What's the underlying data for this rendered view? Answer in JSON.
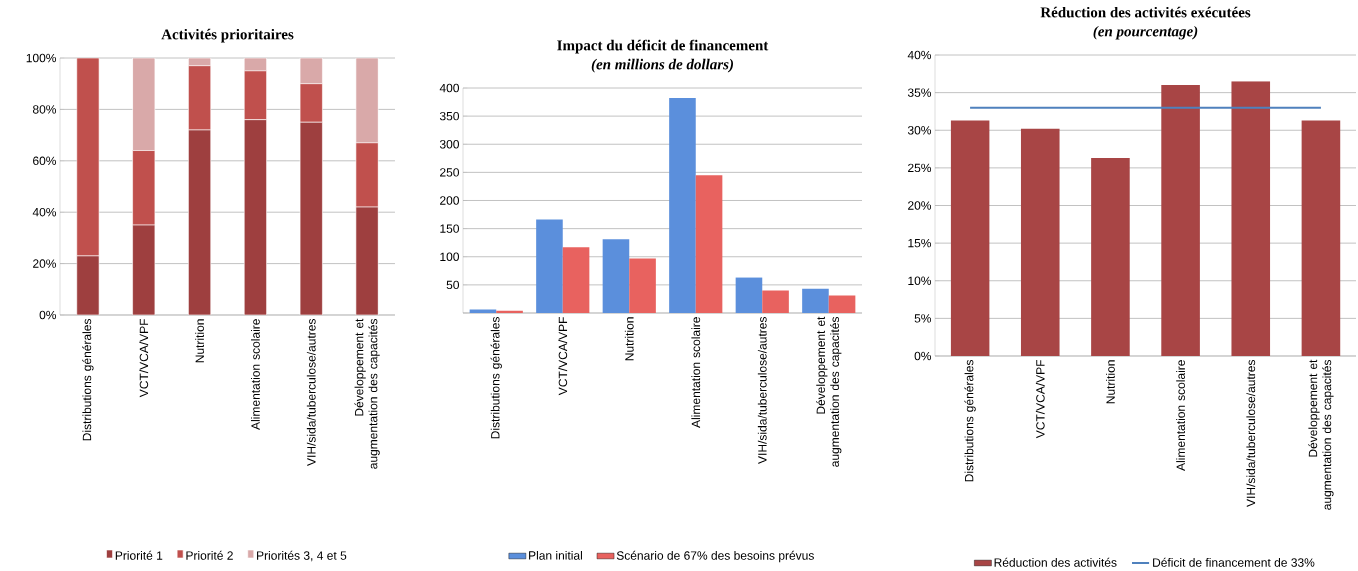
{
  "chart_data": [
    {
      "type": "bar",
      "title": "Activités prioritaires",
      "stacked": true,
      "grid": "y",
      "legend": "bottom",
      "categories": [
        "Distributions générales",
        "VCT/VCA/VPF",
        "Nutrition",
        "Alimentation scolaire",
        "VIH/sida/tuberculose/autres",
        "Développement et augmentation des capacités"
      ],
      "series": [
        {
          "name": "Priorité 1",
          "color": "#9e3f3f",
          "values": [
            23,
            35,
            72,
            76,
            75,
            42
          ]
        },
        {
          "name": "Priorité 2",
          "color": "#c0504d",
          "values": [
            77,
            29,
            25,
            19,
            15,
            25
          ]
        },
        {
          "name": "Priorités 3, 4 et 5",
          "color": "#d9a9a9",
          "values": [
            0,
            36,
            3,
            5,
            10,
            33
          ]
        }
      ],
      "ylim": [
        0,
        100
      ],
      "yticks": [
        {
          "value": 0,
          "label": "0%"
        },
        {
          "value": 20,
          "label": "20%"
        },
        {
          "value": 40,
          "label": "40%"
        },
        {
          "value": 60,
          "label": "60%"
        },
        {
          "value": 80,
          "label": "80%"
        },
        {
          "value": 100,
          "label": "100%"
        }
      ]
    },
    {
      "type": "bar",
      "title": "Impact du déficit de financement",
      "subtitle": "(en millions de dollars)",
      "grid": "y",
      "legend": "bottom",
      "categories": [
        "Distributions générales",
        "VCT/VCA/VPF",
        "Nutrition",
        "Alimentation scolaire",
        "VIH/sida/tuberculose/autres",
        "Développement et augmentation des capacités"
      ],
      "series": [
        {
          "name": "Plan initial",
          "color": "#5b8fdc",
          "values": [
            6,
            166,
            131,
            382,
            63,
            43
          ]
        },
        {
          "name": "Scénario de 67% des besoins prévus",
          "color": "#e8625f",
          "values": [
            4,
            117,
            97,
            245,
            40,
            31
          ]
        }
      ],
      "ylim": [
        0,
        400
      ],
      "yticks": [
        {
          "value": 0,
          "label": null
        },
        50,
        100,
        150,
        200,
        250,
        300,
        350,
        400
      ]
    },
    {
      "type": "bar",
      "title": "Réduction des activités exécutées",
      "subtitle": "(en pourcentage)",
      "grid": "y",
      "legend": "bottom",
      "categories": [
        "Distributions générales",
        "VCT/VCA/VPF",
        "Nutrition",
        "Alimentation scolaire",
        "VIH/sida/tuberculose/autres",
        "Développement et augmentation des capacités"
      ],
      "series": [
        {
          "name": "Réduction des activités",
          "color": "#a84545",
          "values": [
            31.3,
            30.2,
            26.3,
            36,
            36.5,
            31.3
          ]
        },
        {
          "name": "Déficit de financement de 33%",
          "type": "line",
          "color": "#4f81bd",
          "values": [
            33,
            33,
            33,
            33,
            33,
            33
          ]
        }
      ],
      "ylim": [
        0,
        40
      ],
      "yticks": [
        {
          "value": 0,
          "label": "0%"
        },
        {
          "value": 5,
          "label": "5%"
        },
        {
          "value": 10,
          "label": "10%"
        },
        {
          "value": 15,
          "label": "15%"
        },
        {
          "value": 20,
          "label": "20%"
        },
        {
          "value": 25,
          "label": "25%"
        },
        {
          "value": 30,
          "label": "30%"
        },
        {
          "value": 35,
          "label": "35%"
        },
        {
          "value": 40,
          "label": "40%"
        }
      ]
    }
  ]
}
